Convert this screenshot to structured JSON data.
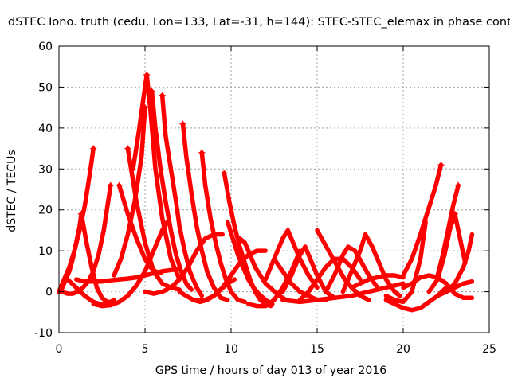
{
  "chart_data": {
    "type": "scatter",
    "title": "dSTEC Iono. truth (cedu, Lon=133, Lat=-31, h=144): STEC-STEC_elemax in phase cont",
    "xlabel": "GPS time / hours of day 013 of year 2016",
    "ylabel": "dSTEC  / TECUs",
    "xlim": [
      0,
      25
    ],
    "ylim": [
      -10,
      60
    ],
    "xticks": [
      0,
      5,
      10,
      15,
      20,
      25
    ],
    "yticks": [
      -10,
      0,
      10,
      20,
      30,
      40,
      50,
      60
    ],
    "grid": true,
    "marker": "+",
    "series_color": "#ff0000",
    "series": [
      {
        "x": [
          0.0,
          0.3,
          0.6,
          0.9,
          1.2,
          1.5,
          1.8,
          2.0
        ],
        "y": [
          0,
          3,
          6,
          10,
          15,
          21,
          29,
          35
        ]
      },
      {
        "x": [
          0.2,
          0.5,
          0.8,
          1.1,
          1.4,
          1.7,
          2.0,
          2.3,
          2.6,
          3.0
        ],
        "y": [
          0,
          -0.5,
          -0.5,
          0,
          1,
          2.5,
          5,
          9,
          15,
          26
        ]
      },
      {
        "x": [
          0.0,
          0.2,
          0.4,
          0.6,
          0.8,
          1.0,
          1.2,
          1.3
        ],
        "y": [
          0,
          1,
          3,
          5,
          8,
          12,
          16,
          19
        ]
      },
      {
        "x": [
          1.3,
          1.6,
          1.9,
          2.2,
          2.5,
          2.8,
          3.0,
          3.2
        ],
        "y": [
          19,
          12,
          6,
          1,
          -1.5,
          -2.5,
          -2.5,
          -2
        ]
      },
      {
        "x": [
          0.5,
          1.0,
          1.5,
          2.0,
          2.5,
          3.0
        ],
        "y": [
          3,
          1,
          -1,
          -2.5,
          -3.2,
          -3
        ]
      },
      {
        "x": [
          2.0,
          2.5,
          3.0,
          3.5,
          4.0,
          4.5,
          5.0,
          5.5,
          6.0,
          6.3
        ],
        "y": [
          -3,
          -3.5,
          -3.3,
          -2.5,
          -1,
          1.5,
          5,
          10,
          15,
          17
        ]
      },
      {
        "x": [
          1.0,
          1.5,
          2.0,
          2.5,
          3.0,
          3.5,
          4.0,
          4.5,
          5.0,
          5.5,
          6.0,
          6.5,
          7.0
        ],
        "y": [
          3,
          2.5,
          2.5,
          2.5,
          2.8,
          3,
          3.2,
          3.5,
          4,
          4.5,
          5,
          5.3,
          5.5
        ]
      },
      {
        "x": [
          3.5,
          4.0,
          4.5,
          5.0,
          5.3,
          5.6,
          5.9
        ],
        "y": [
          26,
          19,
          13,
          8,
          6,
          5,
          4.5
        ]
      },
      {
        "x": [
          4.0,
          4.5,
          5.0,
          5.5,
          6.0,
          6.5,
          7.0
        ],
        "y": [
          35,
          22,
          12,
          5,
          2,
          1,
          0.5
        ]
      },
      {
        "x": [
          3.2,
          3.6,
          4.0,
          4.4,
          4.8,
          5.0
        ],
        "y": [
          4,
          8,
          14,
          22,
          33,
          45
        ]
      },
      {
        "x": [
          4.3,
          4.6,
          4.9,
          5.1,
          5.3,
          5.6,
          6.0,
          6.5,
          7.0
        ],
        "y": [
          30,
          38,
          47,
          53,
          45,
          30,
          18,
          8,
          3
        ]
      },
      {
        "x": [
          5.4,
          5.6,
          5.9,
          6.2,
          6.5,
          6.8,
          7.1,
          7.4,
          7.7
        ],
        "y": [
          49,
          40,
          30,
          22,
          15,
          9,
          5,
          2,
          0.5
        ]
      },
      {
        "x": [
          6.0,
          6.2,
          6.5,
          6.8,
          7.0,
          7.3,
          7.6,
          8.0,
          8.3
        ],
        "y": [
          48,
          38,
          30,
          22,
          16,
          10,
          5,
          1,
          -1
        ]
      },
      {
        "x": [
          7.2,
          7.4,
          7.7,
          8.0,
          8.3,
          8.6,
          9.0,
          9.4,
          9.8
        ],
        "y": [
          41,
          33,
          24,
          16,
          10,
          5,
          1,
          -1.5,
          -2
        ]
      },
      {
        "x": [
          8.3,
          8.5,
          8.8,
          9.1,
          9.4,
          9.7,
          10.0,
          10.4,
          10.8
        ],
        "y": [
          34,
          26,
          18,
          12,
          7,
          3,
          0,
          -2,
          -2.5
        ]
      },
      {
        "x": [
          7.0,
          7.4,
          7.8,
          8.2,
          8.6,
          9.0,
          9.4,
          9.8,
          10.2
        ],
        "y": [
          0,
          -1,
          -2,
          -2.5,
          -2,
          -1,
          0.5,
          2,
          3
        ]
      },
      {
        "x": [
          5.0,
          5.5,
          6.0,
          6.5,
          7.0,
          7.5,
          8.0,
          8.5,
          9.0,
          9.5
        ],
        "y": [
          0,
          -0.5,
          0,
          1,
          3,
          6,
          10,
          13,
          14,
          14
        ]
      },
      {
        "x": [
          9.6,
          9.9,
          10.2,
          10.5,
          10.8,
          11.1,
          11.4,
          11.7,
          12.0,
          12.3
        ],
        "y": [
          29,
          22,
          16,
          11,
          7,
          3,
          0,
          -2,
          -3,
          -3.5
        ]
      },
      {
        "x": [
          9.8,
          10.1,
          10.4,
          10.7,
          11.0,
          11.3,
          11.6,
          12.0,
          12.4
        ],
        "y": [
          17,
          13,
          9,
          6,
          3,
          1,
          -0.5,
          -2,
          -3
        ]
      },
      {
        "x": [
          10.5,
          10.8,
          11.1,
          11.4,
          11.7,
          12.0,
          12.4,
          12.8,
          13.2
        ],
        "y": [
          13,
          12,
          9,
          6,
          4,
          2,
          0.5,
          -1,
          -2
        ]
      },
      {
        "x": [
          8.0,
          8.5,
          9.0,
          9.5,
          10.0,
          10.5,
          11.0,
          11.5,
          12.0
        ],
        "y": [
          -2,
          -2,
          -1,
          1,
          4,
          7,
          9,
          10,
          10
        ]
      },
      {
        "x": [
          11.0,
          11.5,
          12.0,
          12.5,
          13.0,
          13.5,
          14.0
        ],
        "y": [
          -3,
          -3.5,
          -3.5,
          -2,
          1,
          5,
          10
        ]
      },
      {
        "x": [
          12.0,
          12.5,
          13.0,
          13.3,
          13.6,
          14.0,
          14.5,
          15.0
        ],
        "y": [
          3,
          8,
          13,
          15,
          12,
          8,
          4,
          1
        ]
      },
      {
        "x": [
          13.0,
          13.5,
          14.0,
          14.3,
          14.6,
          15.0,
          15.5,
          16.0
        ],
        "y": [
          0,
          4,
          9,
          11,
          8,
          4,
          0,
          -1.5
        ]
      },
      {
        "x": [
          12.5,
          13.0,
          13.5,
          14.0,
          14.5,
          15.0,
          15.5
        ],
        "y": [
          8,
          5,
          2,
          0,
          -1,
          -2,
          -2
        ]
      },
      {
        "x": [
          14.0,
          14.5,
          15.0,
          15.5,
          16.0,
          16.5,
          17.0,
          17.5
        ],
        "y": [
          -2,
          0,
          3,
          6,
          8,
          8,
          6,
          3
        ]
      },
      {
        "x": [
          15.0,
          15.4,
          15.8,
          16.2,
          16.6,
          17.0,
          17.5,
          18.0
        ],
        "y": [
          15,
          12,
          9,
          6,
          3,
          1,
          -1,
          -2
        ]
      },
      {
        "x": [
          15.5,
          16.0,
          16.5,
          16.8,
          17.2,
          17.6,
          18.0,
          18.5
        ],
        "y": [
          0,
          4,
          9,
          11,
          10,
          7,
          4,
          1
        ]
      },
      {
        "x": [
          16.5,
          17.0,
          17.5,
          17.8,
          18.2,
          18.6,
          19.0,
          19.5,
          19.8
        ],
        "y": [
          0,
          5,
          10,
          14,
          11,
          7,
          3,
          0,
          -1
        ]
      },
      {
        "x": [
          13.0,
          14.0,
          15.0,
          16.0,
          17.0,
          18.0,
          19.0,
          20.0
        ],
        "y": [
          -2,
          -2.5,
          -2,
          -1.5,
          -1,
          0,
          1,
          2
        ]
      },
      {
        "x": [
          17.0,
          17.5,
          18.0,
          18.5,
          19.0,
          19.5,
          20.0
        ],
        "y": [
          1,
          2,
          3,
          3.5,
          4,
          4,
          3.5
        ]
      },
      {
        "x": [
          19.0,
          19.5,
          20.0,
          20.5,
          21.0,
          21.3
        ],
        "y": [
          -1,
          -2,
          -2.5,
          0,
          8,
          17
        ]
      },
      {
        "x": [
          19.0,
          19.5,
          20.0,
          20.5,
          21.0,
          21.5,
          22.0,
          22.5
        ],
        "y": [
          -2,
          -3,
          -4,
          -4.5,
          -4,
          -2.5,
          -1,
          1
        ]
      },
      {
        "x": [
          20.0,
          20.5,
          21.0,
          21.5,
          22.0,
          22.5,
          23.0,
          23.5,
          24.0
        ],
        "y": [
          1,
          2,
          3.5,
          4,
          3.5,
          2,
          -0.5,
          -1.5,
          -1.5
        ]
      },
      {
        "x": [
          20.0,
          20.5,
          21.0,
          21.3,
          21.6,
          21.9,
          22.2
        ],
        "y": [
          4,
          8,
          14,
          18,
          22,
          26,
          31
        ]
      },
      {
        "x": [
          22.0,
          22.3,
          22.6,
          22.9,
          23.2
        ],
        "y": [
          4,
          9,
          15,
          21,
          26
        ]
      },
      {
        "x": [
          21.5,
          22.0,
          22.4,
          22.7,
          23.0,
          23.3,
          23.6
        ],
        "y": [
          0,
          3,
          9,
          15,
          19,
          13,
          7
        ]
      },
      {
        "x": [
          22.5,
          23.0,
          23.5,
          23.8,
          24.0
        ],
        "y": [
          0,
          2,
          6,
          10,
          14
        ]
      },
      {
        "x": [
          22.0,
          22.5,
          23.0,
          23.5,
          24.0
        ],
        "y": [
          -1,
          0,
          1,
          2,
          2.5
        ]
      }
    ]
  }
}
